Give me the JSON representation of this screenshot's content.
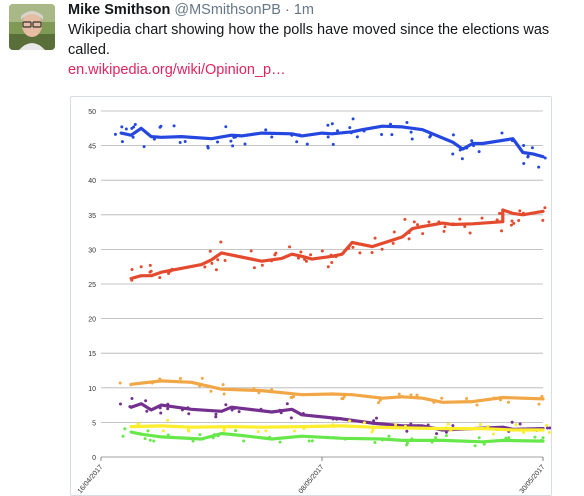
{
  "tweet": {
    "author_name": "Mike Smithson",
    "handle": "@MSmithsonPB",
    "separator": "·",
    "time": "1m",
    "text": "Wikipedia chart showing how the polls have moved since the elections was called.",
    "link_text": "en.wikipedia.org/wiki/Opinion_p…"
  },
  "chart_data": {
    "type": "line",
    "title": "",
    "xlabel": "",
    "ylabel": "",
    "ylim": [
      0,
      50
    ],
    "yticks": [
      0,
      5,
      10,
      15,
      20,
      25,
      30,
      35,
      40,
      45,
      50
    ],
    "xlim": [
      "2017-04-16",
      "2017-05-30"
    ],
    "xtick_labels": [
      "16/04/2017",
      "08/05/2017",
      "30/05/2017"
    ],
    "grid": true,
    "series": [
      {
        "color": "#2447e0",
        "x": [
          "2017-04-18",
          "2017-04-19",
          "2017-04-20",
          "2017-04-21",
          "2017-04-22",
          "2017-04-24",
          "2017-04-27",
          "2017-04-29",
          "2017-04-30",
          "2017-05-02",
          "2017-05-05",
          "2017-05-06",
          "2017-05-08",
          "2017-05-09",
          "2017-05-11",
          "2017-05-12",
          "2017-05-14",
          "2017-05-16",
          "2017-05-18",
          "2017-05-21",
          "2017-05-22",
          "2017-05-23",
          "2017-05-24",
          "2017-05-27",
          "2017-05-28",
          "2017-05-29",
          "2017-05-30"
        ],
        "values": [
          46.8,
          46.5,
          47.5,
          46.3,
          46.2,
          46.3,
          46,
          46.5,
          46.4,
          46.8,
          46.7,
          46.4,
          46.8,
          46.7,
          47,
          47.3,
          47.8,
          47.7,
          47.3,
          45.5,
          44.5,
          45.3,
          45.3,
          46,
          44,
          43.8,
          43.4
        ]
      },
      {
        "color": "#e44a2e",
        "x": [
          "2017-04-19",
          "2017-04-20",
          "2017-04-21",
          "2017-04-22",
          "2017-04-26",
          "2017-04-27",
          "2017-04-28",
          "2017-05-02",
          "2017-05-04",
          "2017-05-05",
          "2017-05-06",
          "2017-05-07",
          "2017-05-09",
          "2017-05-10",
          "2017-05-11",
          "2017-05-13",
          "2017-05-16",
          "2017-05-17",
          "2017-05-18",
          "2017-05-20",
          "2017-05-21",
          "2017-05-23",
          "2017-05-26",
          "2017-05-26",
          "2017-05-27",
          "2017-05-28",
          "2017-05-30"
        ],
        "values": [
          25.8,
          26.2,
          26.2,
          26.7,
          27.8,
          28.5,
          29.5,
          28.3,
          28.7,
          29.3,
          29,
          28.6,
          29,
          29.3,
          31,
          30.4,
          31.8,
          33,
          33.3,
          33.8,
          33.6,
          33.7,
          34,
          35.7,
          35.2,
          35,
          35.5
        ]
      },
      {
        "color": "#f2a746",
        "x": [
          "2017-04-19",
          "2017-04-22",
          "2017-04-25",
          "2017-04-28",
          "2017-05-02",
          "2017-05-06",
          "2017-05-09",
          "2017-05-11",
          "2017-05-14",
          "2017-05-16",
          "2017-05-18",
          "2017-05-20",
          "2017-05-23",
          "2017-05-26",
          "2017-05-30"
        ],
        "values": [
          10.5,
          11,
          10.8,
          9.8,
          9.6,
          9,
          9.1,
          9,
          8.5,
          8.7,
          8.5,
          7.9,
          8,
          8.6,
          8.4
        ]
      },
      {
        "color": "#74308f",
        "x": [
          "2017-04-19",
          "2017-04-20",
          "2017-04-21",
          "2017-04-22",
          "2017-04-25",
          "2017-04-28",
          "2017-04-29",
          "2017-05-03",
          "2017-05-05",
          "2017-05-06",
          "2017-05-10",
          "2017-05-13",
          "2017-05-16",
          "2017-05-18",
          "2017-05-20",
          "2017-05-26",
          "2017-05-27",
          "2017-05-30"
        ],
        "values": [
          7.2,
          7.7,
          6.8,
          7.5,
          6.9,
          6.6,
          7.2,
          6.5,
          6.9,
          6.1,
          5.5,
          4.9,
          4.5,
          4.5,
          3.9,
          4.3,
          4,
          4.1
        ]
      },
      {
        "color": "#fced2d",
        "x": [
          "2017-04-19",
          "2017-04-22",
          "2017-04-25",
          "2017-04-29",
          "2017-05-02",
          "2017-05-06",
          "2017-05-10",
          "2017-05-13",
          "2017-05-16",
          "2017-05-20",
          "2017-05-24",
          "2017-05-27",
          "2017-05-30"
        ],
        "values": [
          4.4,
          4.5,
          4.3,
          4.4,
          4.3,
          4.4,
          4.5,
          4.3,
          4.2,
          4.1,
          4.1,
          3.9,
          3.9
        ]
      },
      {
        "color": "#67e84a",
        "x": [
          "2017-04-19",
          "2017-04-20",
          "2017-04-22",
          "2017-04-26",
          "2017-04-28",
          "2017-04-30",
          "2017-05-03",
          "2017-05-06",
          "2017-05-10",
          "2017-05-14",
          "2017-05-16",
          "2017-05-20",
          "2017-05-24",
          "2017-05-26",
          "2017-05-30"
        ],
        "values": [
          3.6,
          3.3,
          2.9,
          2.6,
          3.4,
          3.1,
          2.6,
          3,
          2.7,
          2.6,
          2.4,
          2.4,
          2.2,
          2.4,
          2.3
        ]
      }
    ]
  },
  "colors": {
    "link": "#e0245e",
    "meta": "#657786",
    "grid": "#b3b3b3"
  },
  "icons": {
    "avatar": "profile-photo"
  }
}
